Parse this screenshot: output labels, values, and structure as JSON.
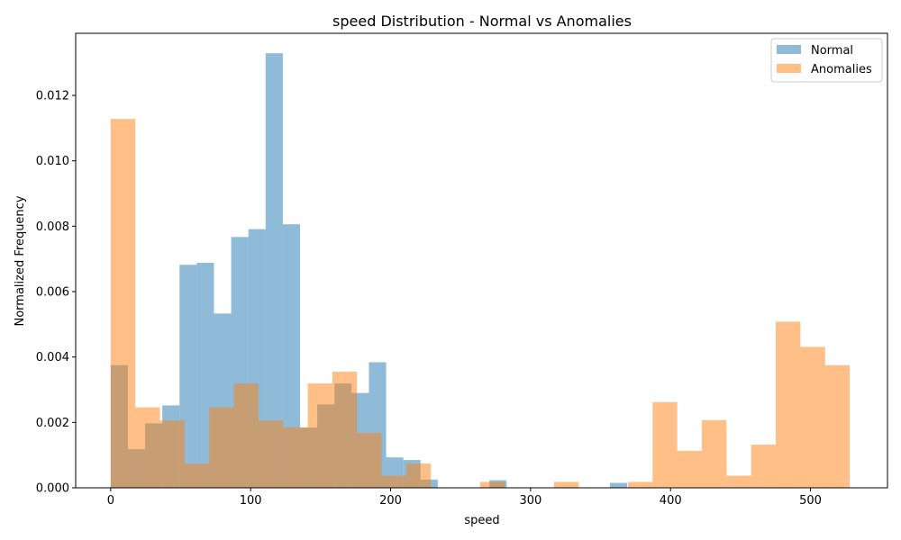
{
  "chart_data": {
    "type": "bar",
    "title": "speed Distribution - Normal vs Anomalies",
    "xlabel": "speed",
    "ylabel": "Normalized Frequency",
    "xlim": [
      -25,
      555
    ],
    "ylim": [
      0,
      0.0139
    ],
    "xticks": [
      0,
      100,
      200,
      300,
      400,
      500
    ],
    "xtick_labels": [
      "0",
      "100",
      "200",
      "300",
      "400",
      "500"
    ],
    "yticks": [
      0,
      0.002,
      0.004,
      0.006,
      0.008,
      0.01,
      0.012
    ],
    "ytick_labels": [
      "0.000",
      "0.002",
      "0.004",
      "0.006",
      "0.008",
      "0.010",
      "0.012"
    ],
    "legend_position": "top-right",
    "grid": false,
    "series": [
      {
        "name": "Normal",
        "color": "#1f77b4",
        "opacity": 0.5,
        "bin_edges": [
          0,
          12.3,
          24.6,
          36.9,
          49.2,
          61.5,
          73.8,
          86.1,
          98.4,
          110.7,
          123.0,
          135.3,
          147.6,
          159.9,
          172.2,
          184.5,
          196.8,
          209.1,
          221.4,
          233.7,
          246.0,
          258.3,
          270.6,
          282.9,
          295.2,
          307.5,
          319.8,
          332.1,
          344.4,
          356.7,
          369.0
        ],
        "values": [
          0.00375,
          0.00118,
          0.00197,
          0.00252,
          0.00682,
          0.00688,
          0.00533,
          0.00767,
          0.00791,
          0.01329,
          0.00806,
          0.00184,
          0.00255,
          0.00319,
          0.0029,
          0.00384,
          0.00093,
          0.00085,
          0.00025,
          0,
          0,
          0,
          0.00023,
          0,
          0,
          0,
          0,
          0,
          0,
          0.00015
        ]
      },
      {
        "name": "Anomalies",
        "color": "#ff7f0e",
        "opacity": 0.5,
        "bin_edges": [
          0,
          17.6,
          35.2,
          52.8,
          70.4,
          88.0,
          105.6,
          123.2,
          140.8,
          158.4,
          176.0,
          193.6,
          211.2,
          228.8,
          246.4,
          264.0,
          281.6,
          299.2,
          316.8,
          334.4,
          352.0,
          369.6,
          387.2,
          404.8,
          422.4,
          440.0,
          457.6,
          475.2,
          492.8,
          510.4,
          528.0
        ],
        "values": [
          0.01128,
          0.00246,
          0.00206,
          0.00074,
          0.00246,
          0.00319,
          0.00206,
          0.00185,
          0.00319,
          0.00355,
          0.00168,
          0.00037,
          0.00074,
          0,
          0,
          0.00018,
          0,
          0,
          0.00018,
          0,
          0,
          0.00018,
          0.00262,
          0.00113,
          0.00207,
          0.00037,
          0.00132,
          0.00508,
          0.00431,
          0.00375
        ]
      }
    ]
  }
}
